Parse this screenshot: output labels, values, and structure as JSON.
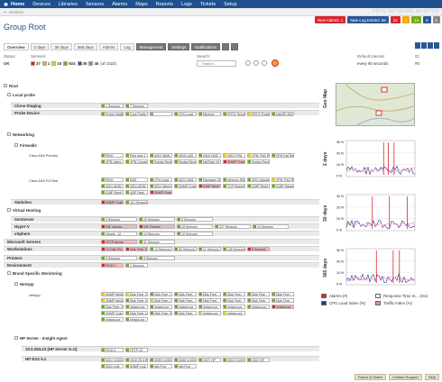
{
  "nav": {
    "home": "Home",
    "items": [
      "Devices",
      "Libraries",
      "Sensors",
      "Alarms",
      "Maps",
      "Reports",
      "Logs",
      "Tickets",
      "Setup"
    ]
  },
  "breadcrumb": "Devices",
  "brand": "PRTG NETWORK MONITOR",
  "alerts": [
    {
      "label": "New Alarms: 1",
      "color": "#d9262d"
    },
    {
      "label": "New Log Entries: 56",
      "color": "#2b5797"
    },
    {
      "label": "22",
      "color": "#d9262d"
    },
    {
      "label": "1",
      "color": "#f4a60d"
    },
    {
      "label": "14",
      "color": "#74ab1f"
    },
    {
      "label": "5",
      "color": "#2b5797"
    },
    {
      "label": "1",
      "color": "#888888"
    }
  ],
  "title": "Group Root",
  "tabs": [
    "Overview",
    "2 days",
    "30 days",
    "365 days",
    "Alarms",
    "Log",
    "Management",
    "Settings",
    "Notifications"
  ],
  "status": {
    "label": "Status:",
    "value": "OK",
    "sensors_label": "Sensors:",
    "search_label": "Search:",
    "search_placeholder": "Search...",
    "interval_label": "Default Interval:",
    "interval_value": "every 60 seconds",
    "id_label": "ID:",
    "id_value": "#0"
  },
  "counts": [
    {
      "n": "37",
      "c": "#d9262d"
    },
    {
      "n": "1",
      "c": "#f4a60d"
    },
    {
      "n": "15",
      "c": "#f0d000"
    },
    {
      "n": "924",
      "c": "#74ab1f"
    },
    {
      "n": "36",
      "c": "#2b5797"
    },
    {
      "n": "46",
      "c": "#888888"
    }
  ],
  "counts_total": "(of 1022)",
  "tree": {
    "root": "Root",
    "local_probe": "Local probe",
    "clone_staging": "Clone Staging",
    "probe_device": "Probe Device",
    "networking": "Networking",
    "firewalls": "Firewalls",
    "asa_primary": "Cisco ASA Primary",
    "asa_fotest": "Cisco ASA FO/Test",
    "switches": "Switches",
    "virtual_hosting": "Virtual Hosting",
    "xenserver": "XenServer",
    "hyperv": "Hyper-V",
    "vsphere": "vSphere",
    "ms_servers": "Microsoft Servers",
    "workstations": "Workstations",
    "printers": "Printers",
    "environment": "Environment",
    "brand_mon": "Brand Specific Monitoring",
    "netapp": "NetApp",
    "netapp_dev": "NetApp",
    "hp": "HP Server - Insight Agent",
    "hp1": "10.0.254.23 (HP Server G.O)",
    "hp2": "HP ESX 5.1"
  },
  "sensors": {
    "clone": [
      "1 Sensors",
      "7 Sensors"
    ],
    "probe": [
      "Probe Health",
      "Core Probe",
      "",
      "CPU Load",
      "Memory",
      "PRTG Serve",
      "PRTG Probe",
      "Intel(R) 8257"
    ],
    "asa1a": [
      "PING",
      "Ping (fnw 1",
      "(001) WAN",
      "(004) LAN",
      "(003) DMZ",
      "(001) PHA",
      "VPN: FAS Ra",
      "VPN Fail Ra"
    ],
    "asa1b": [
      "VPN Users",
      "VPN Connect",
      "Syslog Recei",
      "Syslog Recei",
      "NetFlow V5 1",
      "SNMP Custo",
      "Syslog Recei"
    ],
    "asa2a": [
      "PING",
      "DNS",
      "CPU Load",
      "(001) DMZ",
      "Hardware St",
      "Memory RAM",
      "(001) Manag",
      "VPN: FAS Ra"
    ],
    "asa2b": [
      "(001) ADSL s",
      "(001) ADSL s",
      "(001) Wired",
      "SNMP Custo",
      "ICMP Desti",
      "TCP Segme",
      "ICMP Redir",
      "ICMP Messa"
    ],
    "asa2c": [
      "ICMP Desti",
      "UDP Dest",
      "SNMP Custo"
    ],
    "switches": [
      "SNMP Custo",
      "111 Sensors"
    ],
    "xen": [
      "3 Sensors",
      "20 Sensors",
      "5 Sensors"
    ],
    "hyperv": [
      "VM: ubuntu",
      "VM: Review",
      "33 Sensors",
      "377 Sensors",
      "24 Sensors"
    ],
    "vsphere": [
      "Ubuntu_12",
      "14 Sensors",
      "10 Sensors"
    ],
    "msserv": [
      "HTTP Advan",
      "31 Sensors"
    ],
    "works": [
      "(1) Disk Fre",
      "Disk Free: D",
      "10 Sensors",
      "50 Sensors",
      "21 Sensors",
      "145 Sensors",
      "5 Sensors"
    ],
    "printers": [
      "5 Sensors",
      "3 Sensors"
    ],
    "environment": [
      "PING 1",
      "1 Sensors"
    ],
    "netappA": [
      "SNMP NetAp",
      "Disk Free: 2",
      "Disk Free: /",
      "Disk Free:",
      "Disk Free:",
      "Disk Free:",
      "Disk Free:",
      "Disk Free:"
    ],
    "netappB": [
      "SNMP NetAp",
      "Disk Free: V",
      "Disk Free: /",
      "Disk Free:",
      "Disk Free:",
      "Disk Free:",
      "Disk Free:",
      "Disk Free:"
    ],
    "netappC": [
      "Disk Free: V",
      "netapp.cor",
      "netapp.cor",
      "netapp.cor",
      "netapp.cor",
      "netapp.cor",
      "netapp.cor",
      "netapp.cor"
    ],
    "netappD": [
      "SNMP Cust",
      "Disk Free: s",
      "Disk Free: V",
      "Disk Free:",
      "netapp.cor",
      "netapp.cor"
    ],
    "netappE": [
      "netapp.cor",
      "netapp.cor"
    ],
    "hp1": [
      "PING 4",
      "HTTP 12"
    ],
    "hp2a": [
      "(001) 0-0004",
      "(004) 25 (HP",
      "(005) 0-0004",
      "(006) 0-0004",
      "(007) HP",
      "(001) 0-0004",
      "(002) HP"
    ],
    "hp2b": [
      "(001) Unit",
      "SNMP Link",
      "Net Port",
      "Net Port"
    ]
  },
  "side": {
    "geomap": "Geo Map",
    "d2": "2 days",
    "d30": "30 days",
    "d365": "365 days",
    "ylabels": [
      "30 %",
      "20 %",
      "10 %",
      "0 %"
    ],
    "legend": [
      {
        "label": "Alarms",
        "c": "#d9262d",
        "u": "(#)"
      },
      {
        "label": "Response Time In...",
        "c": "#ffffff",
        "u": "(ms)"
      },
      {
        "label": "CPU Load Index",
        "c": "#1e3a8a",
        "u": "(%)"
      },
      {
        "label": "Traffic Index",
        "c": "#ff80c0",
        "u": "(%)"
      }
    ]
  },
  "footer": [
    "Follow & Share",
    "Contact Support",
    "Help"
  ]
}
